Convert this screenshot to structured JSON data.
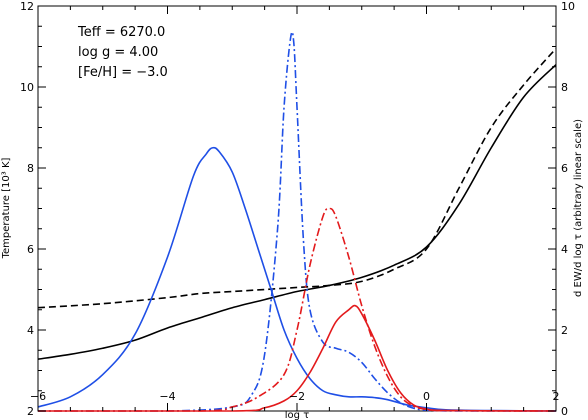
{
  "chart_data": {
    "type": "line",
    "xlabel": "log τ",
    "ylabel_left": "Temperature [10³ K]",
    "ylabel_right": "d EW/d log τ (arbitrary linear scale)",
    "xlim": [
      -6,
      2
    ],
    "ylim_left": [
      2,
      12
    ],
    "ylim_right": [
      0,
      10
    ],
    "x_ticks": [
      -6,
      -4,
      -2,
      0,
      2
    ],
    "y_ticks_left": [
      2,
      4,
      6,
      8,
      10,
      12
    ],
    "y_ticks_right": [
      0,
      2,
      4,
      6,
      8,
      10
    ],
    "x_tick_labels": [
      "−6",
      "−4",
      "−2",
      "0",
      "2"
    ],
    "y_tick_labels_left": [
      "2",
      "4",
      "6",
      "8",
      "10",
      "12"
    ],
    "y_tick_labels_right": [
      "0",
      "2",
      "4",
      "6",
      "8",
      "10"
    ],
    "grid": false,
    "annotations": [
      "Teff  = 6270.0",
      "log g  = 4.00",
      "[Fe/H]  = −3.0"
    ],
    "series": [
      {
        "color": "#000000",
        "style": "solid",
        "axis": "left",
        "x": [
          -6,
          -5.5,
          -5,
          -4.5,
          -4,
          -3.5,
          -3,
          -2.5,
          -2,
          -1.5,
          -1,
          -0.5,
          0,
          0.5,
          1,
          1.5,
          2
        ],
        "y": [
          3.28,
          3.4,
          3.55,
          3.75,
          4.05,
          4.3,
          4.55,
          4.75,
          4.95,
          5.1,
          5.3,
          5.6,
          6.05,
          7.1,
          8.5,
          9.75,
          10.55
        ]
      },
      {
        "color": "#000000",
        "style": "dashed",
        "axis": "left",
        "x": [
          -6,
          -5,
          -4,
          -3.5,
          -3,
          -2.5,
          -2,
          -1.5,
          -1,
          -0.5,
          0,
          0.5,
          1,
          1.5,
          2
        ],
        "y": [
          4.55,
          4.65,
          4.8,
          4.9,
          4.95,
          5.0,
          5.05,
          5.1,
          5.2,
          5.5,
          6.0,
          7.5,
          9.0,
          10.05,
          10.95
        ]
      },
      {
        "color": "#1f4fe6",
        "style": "solid",
        "axis": "right",
        "x": [
          -6,
          -5.5,
          -5,
          -4.5,
          -4,
          -3.6,
          -3.4,
          -3.3,
          -3.2,
          -3,
          -2.8,
          -2.6,
          -2.4,
          -2.2,
          -2,
          -1.8,
          -1.6,
          -1.4,
          -1.2,
          -1,
          -0.8,
          -0.6,
          -0.3,
          0,
          0.3,
          1,
          2
        ],
        "y": [
          0.1,
          0.35,
          0.9,
          1.9,
          3.8,
          5.8,
          6.35,
          6.5,
          6.4,
          5.9,
          5.0,
          4.0,
          3.0,
          2.0,
          1.3,
          0.8,
          0.5,
          0.4,
          0.35,
          0.35,
          0.33,
          0.28,
          0.15,
          0.08,
          0.03,
          0.01,
          0
        ]
      },
      {
        "color": "#1f4fe6",
        "style": "dashdot",
        "axis": "right",
        "x": [
          -6,
          -4,
          -3,
          -2.7,
          -2.5,
          -2.3,
          -2.2,
          -2.1,
          -2.05,
          -2.0,
          -1.9,
          -1.8,
          -1.6,
          -1.4,
          -1.2,
          -1.0,
          -0.8,
          -0.6,
          -0.4,
          -0.2,
          0,
          0.5,
          2
        ],
        "y": [
          0,
          0,
          0.1,
          0.4,
          1.4,
          4.5,
          7.5,
          9.2,
          9.1,
          7.5,
          4.2,
          2.5,
          1.7,
          1.55,
          1.45,
          1.2,
          0.8,
          0.45,
          0.2,
          0.07,
          0.02,
          0,
          0
        ]
      },
      {
        "color": "#e31a1c",
        "style": "dashdot",
        "axis": "right",
        "x": [
          -6,
          -3.5,
          -3,
          -2.6,
          -2.2,
          -2.0,
          -1.8,
          -1.6,
          -1.5,
          -1.4,
          -1.2,
          -1.0,
          -0.8,
          -0.6,
          -0.4,
          -0.2,
          0,
          0.3,
          2
        ],
        "y": [
          0,
          0,
          0.1,
          0.35,
          0.9,
          2.0,
          3.6,
          4.8,
          5.0,
          4.8,
          3.8,
          2.6,
          1.6,
          0.85,
          0.35,
          0.12,
          0.04,
          0.01,
          0
        ]
      },
      {
        "color": "#e31a1c",
        "style": "solid",
        "axis": "right",
        "x": [
          -6,
          -3,
          -2.5,
          -2.2,
          -2.0,
          -1.8,
          -1.6,
          -1.4,
          -1.2,
          -1.1,
          -1.0,
          -0.8,
          -0.6,
          -0.4,
          -0.2,
          0,
          0.3,
          2
        ],
        "y": [
          0,
          0,
          0.08,
          0.25,
          0.5,
          0.95,
          1.55,
          2.2,
          2.5,
          2.6,
          2.4,
          1.75,
          1.0,
          0.45,
          0.15,
          0.05,
          0.01,
          0
        ]
      }
    ]
  }
}
